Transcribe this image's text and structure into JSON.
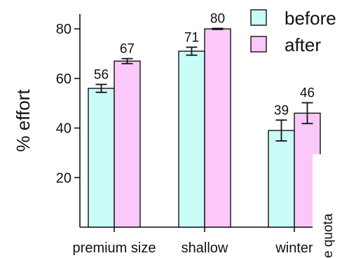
{
  "chart_data": {
    "type": "bar",
    "title": "",
    "ylabel": "% effort",
    "xlabel": "",
    "ylim": [
      0,
      86
    ],
    "yticks": [
      20,
      40,
      60,
      80
    ],
    "categories": [
      "premium size",
      "shallow",
      "winter"
    ],
    "series": [
      {
        "name": "before",
        "color": "#cafcf7",
        "values": [
          56,
          71,
          39
        ],
        "labels": [
          "56",
          "71",
          "39"
        ],
        "err": [
          1.6,
          1.6,
          4.2
        ]
      },
      {
        "name": "after",
        "color": "#fbc8f9",
        "values": [
          67,
          80,
          46
        ],
        "labels": [
          "67",
          "80",
          "46"
        ],
        "err": [
          1.0,
          0.2,
          4.2
        ]
      }
    ],
    "legend_position": "top-right",
    "side_label": "e quota",
    "grid": false
  }
}
